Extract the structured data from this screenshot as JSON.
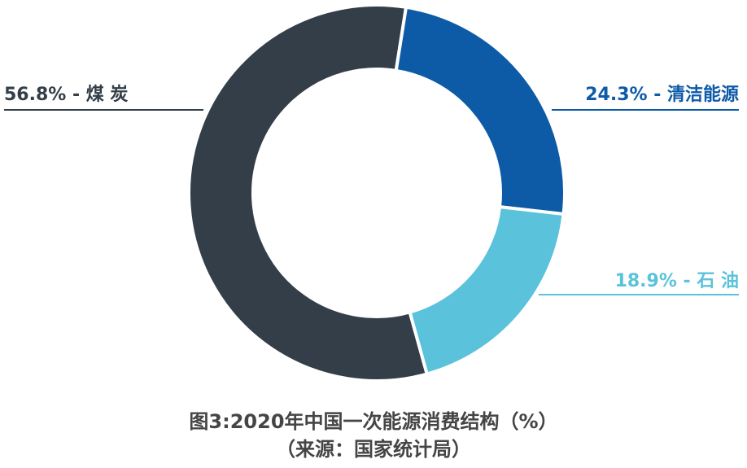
{
  "chart_data": {
    "type": "donut",
    "title": "图3:2020年中国一次能源消费结构（%）",
    "subtitle": "（来源：国家统计局）",
    "values": [
      56.8,
      24.3,
      18.9
    ],
    "value_labels": [
      "56.8% - 煤 炭",
      "24.3% - 清洁能源",
      "18.9% - 石 油"
    ],
    "colors": [
      "#333e48",
      "#0d5aa7",
      "#5bc2dc"
    ]
  }
}
